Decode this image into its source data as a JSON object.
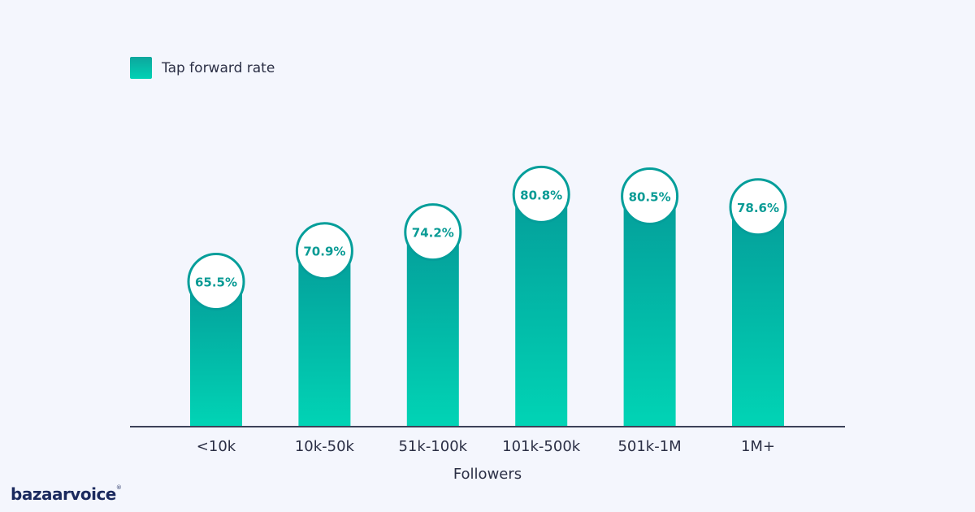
{
  "legend": {
    "label": "Tap forward rate"
  },
  "brand": {
    "name": "bazaarvoice"
  },
  "colors": {
    "bar_top": "#049e9a",
    "bar_bottom": "#01d4b5",
    "baseline": "#3c4258",
    "label_text": "#0a9b95",
    "axis_text": "#2b2f45",
    "background": "#f4f6fd"
  },
  "chart_data": {
    "type": "bar",
    "title": "",
    "xlabel": "Followers",
    "ylabel": "",
    "categories": [
      "<10k",
      "10k-50k",
      "51k-100k",
      "101k-500k",
      "501k-1M",
      "1M+"
    ],
    "series": [
      {
        "name": "Tap forward rate",
        "values": [
          65.5,
          70.9,
          74.2,
          80.8,
          80.5,
          78.6
        ],
        "labels": [
          "65.5%",
          "70.9%",
          "74.2%",
          "80.8%",
          "80.5%",
          "78.6%"
        ]
      }
    ],
    "ylim": [
      0,
      100
    ],
    "grid": false,
    "legend_position": "top-left"
  }
}
